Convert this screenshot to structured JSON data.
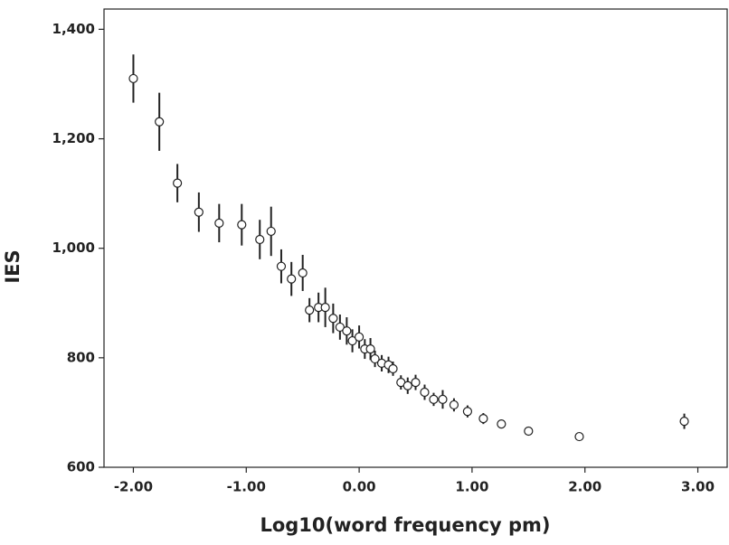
{
  "chart_data": {
    "type": "scatter",
    "x_label": "Log10(word frequency pm)",
    "y_label": "IES",
    "x": [
      -2.0,
      -1.77,
      -1.61,
      -1.42,
      -1.24,
      -1.04,
      -0.88,
      -0.78,
      -0.69,
      -0.6,
      -0.5,
      -0.44,
      -0.36,
      -0.3,
      -0.23,
      -0.17,
      -0.11,
      -0.06,
      0.0,
      0.05,
      0.1,
      0.14,
      0.2,
      0.26,
      0.3,
      0.37,
      0.43,
      0.5,
      0.58,
      0.66,
      0.74,
      0.84,
      0.96,
      1.1,
      1.26,
      1.5,
      1.95,
      2.88
    ],
    "values": [
      1310,
      1231,
      1119,
      1066,
      1046,
      1043,
      1016,
      1031,
      967,
      944,
      955,
      887,
      892,
      892,
      872,
      856,
      849,
      831,
      838,
      816,
      816,
      798,
      790,
      787,
      780,
      755,
      749,
      755,
      737,
      724,
      724,
      714,
      702,
      689,
      679,
      666,
      656,
      684
    ],
    "errors": [
      44,
      53,
      35,
      36,
      35,
      38,
      36,
      45,
      31,
      31,
      33,
      22,
      27,
      36,
      27,
      23,
      25,
      21,
      21,
      18,
      20,
      15,
      15,
      15,
      13,
      13,
      15,
      14,
      14,
      12,
      17,
      12,
      11,
      10,
      8,
      8,
      7,
      14
    ],
    "color": "#222222",
    "xlim": [
      -2.26,
      3.26
    ],
    "ylim": [
      600,
      1437
    ],
    "xticks": [
      {
        "value": -2,
        "label": "-2.00"
      },
      {
        "value": -1,
        "label": "-1.00"
      },
      {
        "value": 0,
        "label": "0.00"
      },
      {
        "value": 1,
        "label": "1.00"
      },
      {
        "value": 2,
        "label": "2.00"
      },
      {
        "value": 3,
        "label": "3.00"
      }
    ],
    "yticks": [
      600,
      800,
      {
        "value": 1000,
        "label": "1,000"
      },
      {
        "value": 1200,
        "label": "1,200"
      },
      {
        "value": 1400,
        "label": "1,400"
      }
    ]
  }
}
